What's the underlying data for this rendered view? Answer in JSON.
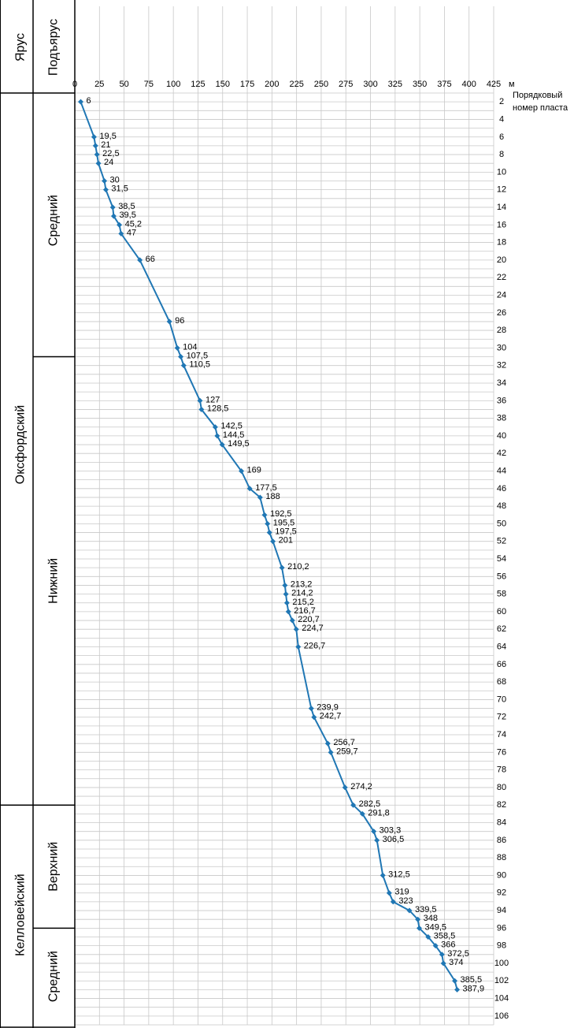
{
  "header": {
    "stage_label": "Ярус",
    "substage_label": "Подъярус"
  },
  "axis": {
    "x_unit": "м",
    "y_title_line1": "Порядковый",
    "y_title_line2": "номер пласта"
  },
  "stages": [
    {
      "name": "Оксфордский",
      "from": 0,
      "to": 82
    },
    {
      "name": "Келловейский",
      "from": 82,
      "to": 107
    }
  ],
  "substages": [
    {
      "name": "Средний",
      "from": 0,
      "to": 31
    },
    {
      "name": "Нижний",
      "from": 31,
      "to": 82
    },
    {
      "name": "Верхний",
      "from": 82,
      "to": 96
    },
    {
      "name": "Средний",
      "from": 96,
      "to": 107
    }
  ],
  "colors": {
    "line": "#2077b4",
    "grid": "#c8c8c8",
    "border": "#000000"
  },
  "chart_data": {
    "type": "line",
    "xlim": [
      0,
      425
    ],
    "x_ticks": [
      0,
      25,
      50,
      75,
      100,
      125,
      150,
      175,
      200,
      225,
      250,
      275,
      300,
      325,
      350,
      375,
      400,
      425
    ],
    "ylim": [
      1,
      107
    ],
    "y_ticks": [
      2,
      4,
      6,
      8,
      10,
      12,
      14,
      16,
      18,
      20,
      22,
      24,
      26,
      28,
      30,
      32,
      34,
      36,
      38,
      40,
      42,
      44,
      46,
      48,
      50,
      52,
      54,
      56,
      58,
      60,
      62,
      64,
      66,
      68,
      70,
      72,
      74,
      76,
      78,
      80,
      82,
      84,
      86,
      88,
      90,
      92,
      94,
      96,
      98,
      100,
      102,
      104,
      106
    ],
    "grid": true,
    "points": [
      {
        "x": 6,
        "y": 2,
        "label": "6"
      },
      {
        "x": 19.5,
        "y": 6,
        "label": "19,5"
      },
      {
        "x": 21,
        "y": 7,
        "label": "21"
      },
      {
        "x": 22.5,
        "y": 8,
        "label": "22,5"
      },
      {
        "x": 24,
        "y": 9,
        "label": "24"
      },
      {
        "x": 30,
        "y": 11,
        "label": "30"
      },
      {
        "x": 31.5,
        "y": 12,
        "label": "31,5"
      },
      {
        "x": 38.5,
        "y": 14,
        "label": "38,5"
      },
      {
        "x": 39.5,
        "y": 15,
        "label": "39,5"
      },
      {
        "x": 45.2,
        "y": 16,
        "label": "45,2"
      },
      {
        "x": 47,
        "y": 17,
        "label": "47"
      },
      {
        "x": 66,
        "y": 20,
        "label": "66"
      },
      {
        "x": 96,
        "y": 27,
        "label": "96"
      },
      {
        "x": 104,
        "y": 30,
        "label": "104"
      },
      {
        "x": 107.5,
        "y": 31,
        "label": "107,5"
      },
      {
        "x": 110.5,
        "y": 32,
        "label": "110,5"
      },
      {
        "x": 127,
        "y": 36,
        "label": "127"
      },
      {
        "x": 128.5,
        "y": 37,
        "label": "128,5"
      },
      {
        "x": 142.5,
        "y": 39,
        "label": "142,5"
      },
      {
        "x": 144.5,
        "y": 40,
        "label": "144,5"
      },
      {
        "x": 149.5,
        "y": 41,
        "label": "149,5"
      },
      {
        "x": 169,
        "y": 44,
        "label": "169"
      },
      {
        "x": 177.5,
        "y": 46,
        "label": "177,5"
      },
      {
        "x": 188,
        "y": 47,
        "label": "188"
      },
      {
        "x": 192.5,
        "y": 49,
        "label": "192,5"
      },
      {
        "x": 195.5,
        "y": 50,
        "label": "195,5"
      },
      {
        "x": 197.5,
        "y": 51,
        "label": "197,5"
      },
      {
        "x": 201,
        "y": 52,
        "label": "201"
      },
      {
        "x": 210.2,
        "y": 55,
        "label": "210,2"
      },
      {
        "x": 213.2,
        "y": 57,
        "label": "213,2"
      },
      {
        "x": 214.2,
        "y": 58,
        "label": "214,2"
      },
      {
        "x": 215.2,
        "y": 59,
        "label": "215,2"
      },
      {
        "x": 216.7,
        "y": 60,
        "label": "216,7"
      },
      {
        "x": 220.7,
        "y": 61,
        "label": "220,7"
      },
      {
        "x": 224.7,
        "y": 62,
        "label": "224,7"
      },
      {
        "x": 226.7,
        "y": 64,
        "label": "226,7"
      },
      {
        "x": 239.9,
        "y": 71,
        "label": "239,9"
      },
      {
        "x": 242.7,
        "y": 72,
        "label": "242,7"
      },
      {
        "x": 256.7,
        "y": 75,
        "label": "256,7"
      },
      {
        "x": 259.7,
        "y": 76,
        "label": "259,7"
      },
      {
        "x": 274.2,
        "y": 80,
        "label": "274,2"
      },
      {
        "x": 282.5,
        "y": 82,
        "label": "282,5"
      },
      {
        "x": 291.8,
        "y": 83,
        "label": "291,8"
      },
      {
        "x": 303.3,
        "y": 85,
        "label": "303,3"
      },
      {
        "x": 306.5,
        "y": 86,
        "label": "306,5"
      },
      {
        "x": 312.5,
        "y": 90,
        "label": "312,5"
      },
      {
        "x": 319,
        "y": 92,
        "label": "319"
      },
      {
        "x": 323,
        "y": 93,
        "label": "323"
      },
      {
        "x": 339.5,
        "y": 94,
        "label": "339,5"
      },
      {
        "x": 348,
        "y": 95,
        "label": "348"
      },
      {
        "x": 349.5,
        "y": 96,
        "label": "349,5"
      },
      {
        "x": 358.5,
        "y": 97,
        "label": "358,5"
      },
      {
        "x": 366,
        "y": 98,
        "label": "366"
      },
      {
        "x": 372.5,
        "y": 99,
        "label": "372,5"
      },
      {
        "x": 374,
        "y": 100,
        "label": "374"
      },
      {
        "x": 385.5,
        "y": 102,
        "label": "385,5"
      },
      {
        "x": 387.9,
        "y": 103,
        "label": "387,9"
      }
    ]
  }
}
